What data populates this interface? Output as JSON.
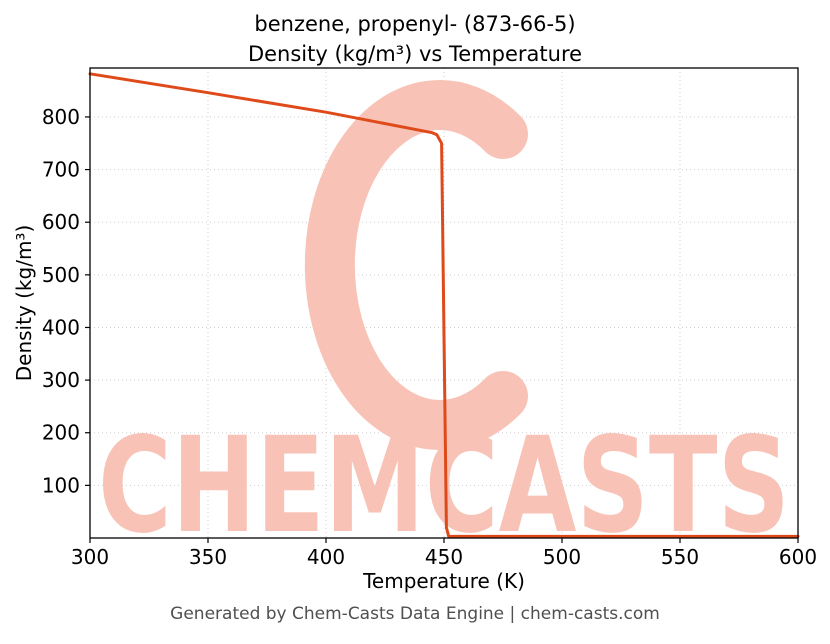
{
  "figure": {
    "title_line1": "benzene, propenyl- (873-66-5)",
    "title_line2": "Density (kg/m³) vs Temperature",
    "footer": "Generated by Chem-Casts Data Engine | chem-casts.com"
  },
  "watermark": {
    "text": "CHEMCASTS",
    "color": "#f8c3b6"
  },
  "chart_data": {
    "type": "line",
    "title": "benzene, propenyl- (873-66-5) — Density (kg/m³) vs Temperature",
    "xlabel": "Temperature (K)",
    "ylabel": "Density (kg/m³)",
    "xlim": [
      300,
      600
    ],
    "ylim": [
      0,
      893
    ],
    "x_ticks": [
      300,
      350,
      400,
      450,
      500,
      550,
      600
    ],
    "y_ticks": [
      100,
      200,
      300,
      400,
      500,
      600,
      700,
      800
    ],
    "grid": true,
    "legend": false,
    "line_color": "#df4a1b",
    "series": [
      {
        "name": "Density (kg/m³)",
        "points": [
          [
            300,
            882
          ],
          [
            350,
            846
          ],
          [
            400,
            809
          ],
          [
            445,
            770
          ],
          [
            447,
            766
          ],
          [
            449,
            750
          ],
          [
            451,
            20
          ],
          [
            452,
            3
          ],
          [
            500,
            3
          ],
          [
            550,
            3
          ],
          [
            600,
            3
          ]
        ]
      }
    ]
  }
}
